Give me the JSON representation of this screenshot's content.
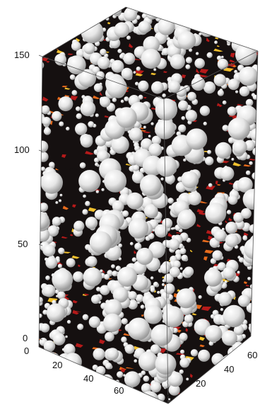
{
  "figure": {
    "type": "3d-particle-packing",
    "colors": {
      "spheres": "#e8e8e8",
      "sphere_shadow": "#9a9a9a",
      "void_dark": "#151010",
      "void_red": "#b51a1a",
      "void_orange": "#e86b1c",
      "void_yellow": "#f2c12e",
      "axis": "#555555"
    },
    "axes": {
      "z_ticks": [
        "150",
        "100",
        "50",
        "0"
      ],
      "x_ticks": [
        "0",
        "20",
        "40",
        "60"
      ],
      "y_ticks": [
        "0",
        "20",
        "40",
        "60"
      ]
    }
  }
}
